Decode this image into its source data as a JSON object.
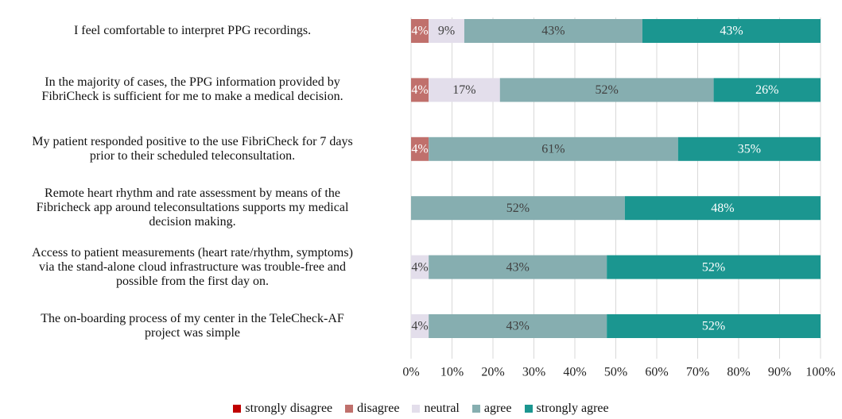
{
  "chart_data": {
    "type": "stacked-bar-horizontal",
    "categories": [
      "I feel comfortable to interpret PPG recordings.",
      "In the majority of cases, the PPG information provided by\nFibriCheck is sufficient for me to make a medical decision.",
      "My patient responded positive to the use FibriCheck for 7 days\nprior to their scheduled teleconsultation.",
      "Remote heart rhythm and rate assessment by means of the\nFibricheck app around teleconsultations supports my medical\ndecision making.",
      "Access to patient measurements (heart rate/rhythm, symptoms)\nvia the stand-alone cloud infrastructure was trouble-free and\npossible from the first day on.",
      "The on-boarding process of my center in the TeleCheck-AF\nproject was simple"
    ],
    "series": [
      {
        "name": "strongly disagree",
        "color": "#c00000",
        "values": [
          0,
          0,
          0,
          0,
          0,
          0
        ],
        "value_labels": [
          null,
          null,
          null,
          null,
          null,
          null
        ]
      },
      {
        "name": "disagree",
        "color": "#c0706c",
        "values": [
          4.3,
          4.3,
          4.3,
          0,
          0,
          0
        ],
        "value_labels": [
          "4%",
          "4%",
          "4%",
          null,
          null,
          null
        ]
      },
      {
        "name": "neutral",
        "color": "#e3deeb",
        "values": [
          8.7,
          17.4,
          0,
          0,
          4.3,
          4.3
        ],
        "value_labels": [
          "9%",
          "17%",
          null,
          null,
          "4%",
          "4%"
        ]
      },
      {
        "name": "agree",
        "color": "#86aeb0",
        "values": [
          43.5,
          52.2,
          60.9,
          52.2,
          43.5,
          43.5
        ],
        "value_labels": [
          "43%",
          "52%",
          "61%",
          "52%",
          "43%",
          "43%"
        ]
      },
      {
        "name": "strongly agree",
        "color": "#1b9690",
        "values": [
          43.5,
          26.1,
          34.8,
          47.8,
          52.2,
          52.2
        ],
        "value_labels": [
          "43%",
          "26%",
          "35%",
          "48%",
          "52%",
          "52%"
        ]
      }
    ],
    "xlim": [
      0,
      100
    ],
    "xticks": [
      {
        "value": 0,
        "label": "0%"
      },
      {
        "value": 10,
        "label": "10%"
      },
      {
        "value": 20,
        "label": "20%"
      },
      {
        "value": 30,
        "label": "30%"
      },
      {
        "value": 40,
        "label": "40%"
      },
      {
        "value": 50,
        "label": "50%"
      },
      {
        "value": 60,
        "label": "60%"
      },
      {
        "value": 70,
        "label": "70%"
      },
      {
        "value": 80,
        "label": "80%"
      },
      {
        "value": 90,
        "label": "90%"
      },
      {
        "value": 100,
        "label": "100%"
      }
    ],
    "grid": true,
    "legend": "bottom"
  }
}
